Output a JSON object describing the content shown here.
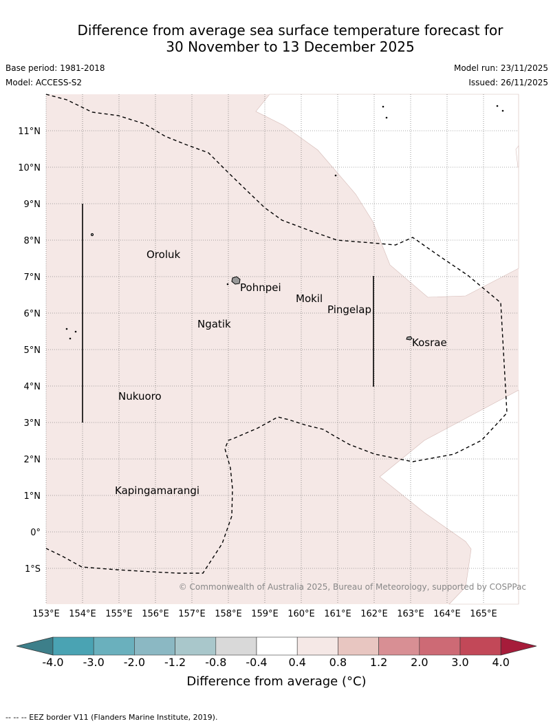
{
  "title": {
    "line1": "Difference from average sea surface temperature forecast for",
    "line2": "30 November to 13 December 2025"
  },
  "meta": {
    "base_period": "Base period: 1981-2018",
    "model": "Model: ACCESS-S2",
    "model_run": "Model run: 23/11/2025",
    "issued": "Issued: 26/11/2025"
  },
  "map": {
    "lat_labels": [
      "11°N",
      "10°N",
      "9°N",
      "8°N",
      "7°N",
      "6°N",
      "5°N",
      "4°N",
      "3°N",
      "2°N",
      "1°N",
      "0°",
      "1°S"
    ],
    "lon_labels": [
      "153°E",
      "154°E",
      "155°E",
      "156°E",
      "157°E",
      "158°E",
      "159°E",
      "160°E",
      "161°E",
      "162°E",
      "163°E",
      "164°E",
      "165°E"
    ],
    "places": [
      "Oroluk",
      "Pohnpei",
      "Mokil",
      "Pingelap",
      "Ngatik",
      "Kosrae",
      "Nukuoro",
      "Kapingamarangi"
    ],
    "copyright": "© Commonwealth of Australia 2025, Bureau of Meteorology, supported by COSPPac",
    "anomaly_fill_color": "#f5e8e6",
    "neutral_color": "#ffffff"
  },
  "colorbar": {
    "ticks": [
      "-4.0",
      "-3.0",
      "-2.0",
      "-1.2",
      "-0.8",
      "-0.4",
      "0.4",
      "0.8",
      "1.2",
      "2.0",
      "3.0",
      "4.0"
    ],
    "colors": [
      "#3d7f8a",
      "#4aa3b3",
      "#6ab0bd",
      "#8bb8c3",
      "#a9c7cb",
      "#d9d9d9",
      "#ffffff",
      "#f5e8e6",
      "#e8c6c1",
      "#d88f94",
      "#cd6a75",
      "#c24858",
      "#a61c3a"
    ],
    "label": "Difference from average (°C)"
  },
  "footer": "-- -- -- EEZ border V11 (Flanders Marine Institute, 2019)."
}
